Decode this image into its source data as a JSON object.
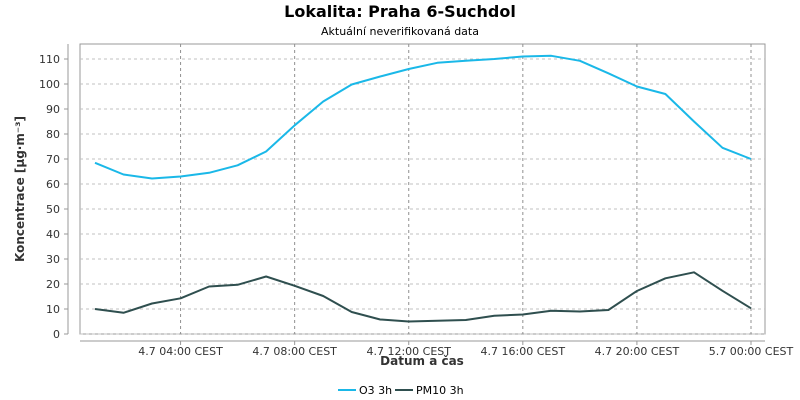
{
  "chart_data": {
    "type": "line",
    "title": "Lokalita: Praha 6-Suchdol",
    "subtitle": "Aktuální neverifikovaná data",
    "xlabel": "Datum a čas",
    "ylabel": "Koncentrace [µg·m⁻³]",
    "ylim": [
      0,
      116
    ],
    "yticks": [
      0,
      10,
      20,
      30,
      40,
      50,
      60,
      70,
      80,
      90,
      100,
      110
    ],
    "xlim": [
      0,
      23
    ],
    "x_hours": [
      0,
      1,
      2,
      3,
      4,
      5,
      6,
      7,
      8,
      9,
      10,
      11,
      12,
      13,
      14,
      15,
      16,
      17,
      18,
      19,
      20,
      21,
      22,
      23
    ],
    "xticks": [
      {
        "hour": 3,
        "label": "4.7 04:00 CEST"
      },
      {
        "hour": 7,
        "label": "4.7 08:00 CEST"
      },
      {
        "hour": 11,
        "label": "4.7 12:00 CEST"
      },
      {
        "hour": 15,
        "label": "4.7 16:00 CEST"
      },
      {
        "hour": 19,
        "label": "4.7 20:00 CEST"
      },
      {
        "hour": 23,
        "label": "5.7 00:00 CEST"
      }
    ],
    "grid": true,
    "legend_position": "bottom-center",
    "series": [
      {
        "name": "O3 3h",
        "color": "#1ab8e8",
        "values": [
          68.5,
          63.8,
          62.2,
          63.0,
          64.5,
          67.5,
          73.0,
          83.5,
          93.0,
          99.8,
          103.0,
          106.0,
          108.5,
          109.3,
          110.0,
          111.0,
          111.3,
          109.3,
          104.3,
          99.0,
          96.0,
          85.0,
          74.5,
          70.0
        ]
      },
      {
        "name": "PM10 3h",
        "color": "#2f4f4f",
        "values": [
          10.0,
          8.5,
          12.2,
          14.3,
          19.0,
          19.7,
          23.0,
          19.3,
          15.2,
          8.8,
          5.8,
          5.0,
          5.3,
          5.6,
          7.3,
          7.8,
          9.3,
          9.0,
          9.6,
          17.2,
          22.3,
          24.7,
          17.3,
          10.3
        ]
      }
    ]
  }
}
